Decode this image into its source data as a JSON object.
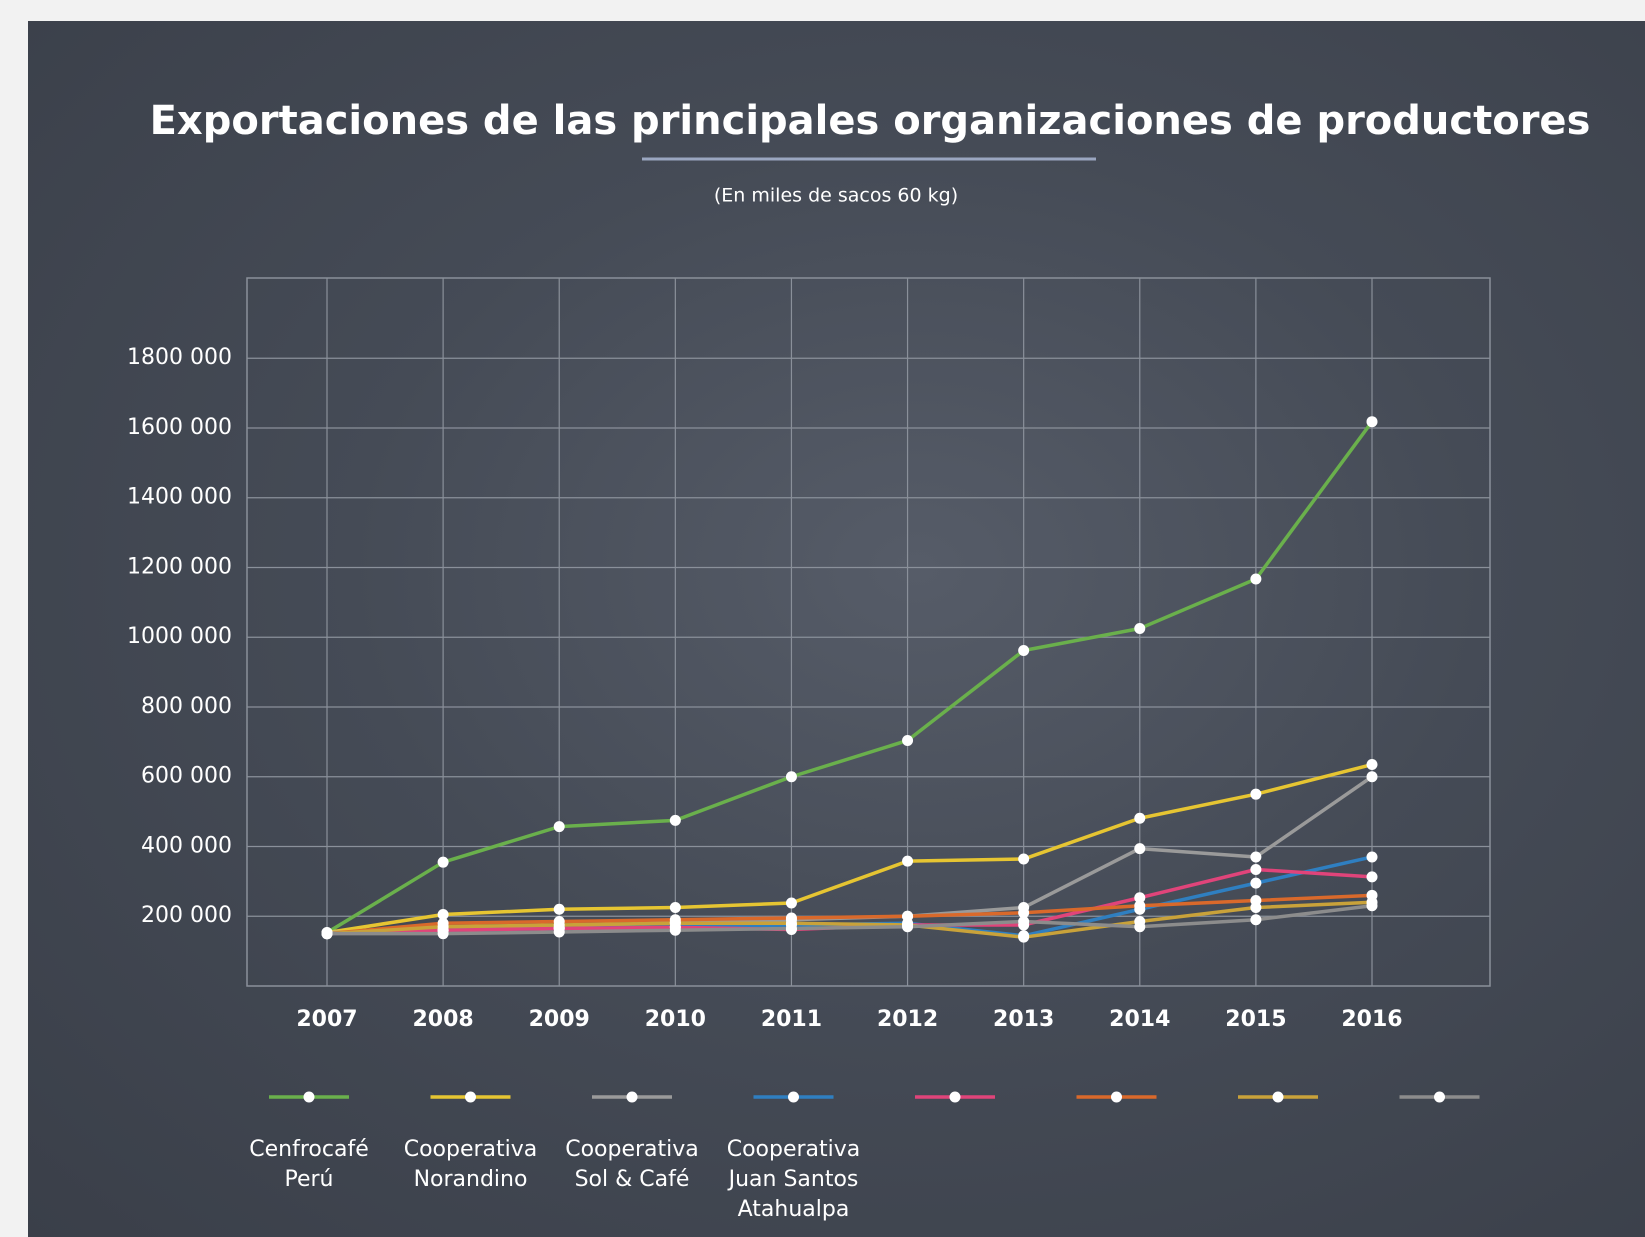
{
  "chart_data": {
    "type": "line",
    "title": "Exportaciones de las principales organizaciones de productores",
    "subtitle": "(En miles de sacos 60 kg)",
    "categories": [
      "2007",
      "2008",
      "2009",
      "2010",
      "2011",
      "2012",
      "2013",
      "2014",
      "2015",
      "2016"
    ],
    "ylim": [
      0,
      2030000
    ],
    "yticks": [
      {
        "value": 200000,
        "label": "200 000"
      },
      {
        "value": 400000,
        "label": "400 000"
      },
      {
        "value": 600000,
        "label": "600 000"
      },
      {
        "value": 800000,
        "label": "800 000"
      },
      {
        "value": 1000000,
        "label": "1000 000"
      },
      {
        "value": 1200000,
        "label": "1200 000"
      },
      {
        "value": 1400000,
        "label": "1400 000"
      },
      {
        "value": 1600000,
        "label": "1600 000"
      },
      {
        "value": 1800000,
        "label": "1800 000"
      }
    ],
    "grid": true,
    "series": [
      {
        "name": "Cenfrocafé Perú",
        "color": "#6ab04c",
        "values": [
          153000,
          355000,
          457000,
          475000,
          600000,
          704000,
          962000,
          1025000,
          1167000,
          1618000
        ]
      },
      {
        "name": "Cooperativa Norandino",
        "color": "#e6c532",
        "values": [
          153000,
          205000,
          220000,
          225000,
          238000,
          358000,
          364000,
          481000,
          550000,
          635000
        ]
      },
      {
        "name": "Cooperativa Sol & Café",
        "color": "#9a9a9a",
        "values": [
          153000,
          160000,
          168000,
          183000,
          190000,
          200000,
          225000,
          394000,
          370000,
          600000
        ]
      },
      {
        "name": "Cooperativa Juan Santos Atahualpa",
        "color": "#2f7fc1",
        "values": [
          150000,
          160000,
          165000,
          170000,
          175000,
          180000,
          144000,
          220000,
          295000,
          370000
        ]
      },
      {
        "color": "#e0447a",
        "values": [
          150000,
          160000,
          165000,
          168000,
          162000,
          175000,
          175000,
          253000,
          334000,
          313000
        ]
      },
      {
        "color": "#d9692b",
        "values": [
          150000,
          180000,
          185000,
          190000,
          195000,
          200000,
          210000,
          230000,
          245000,
          260000
        ]
      },
      {
        "color": "#c9a23a",
        "values": [
          150000,
          170000,
          175000,
          180000,
          180000,
          175000,
          140000,
          185000,
          225000,
          240000
        ]
      },
      {
        "color": "#8c8c8c",
        "values": [
          150000,
          150000,
          155000,
          160000,
          165000,
          170000,
          185000,
          170000,
          190000,
          230000
        ]
      }
    ]
  }
}
